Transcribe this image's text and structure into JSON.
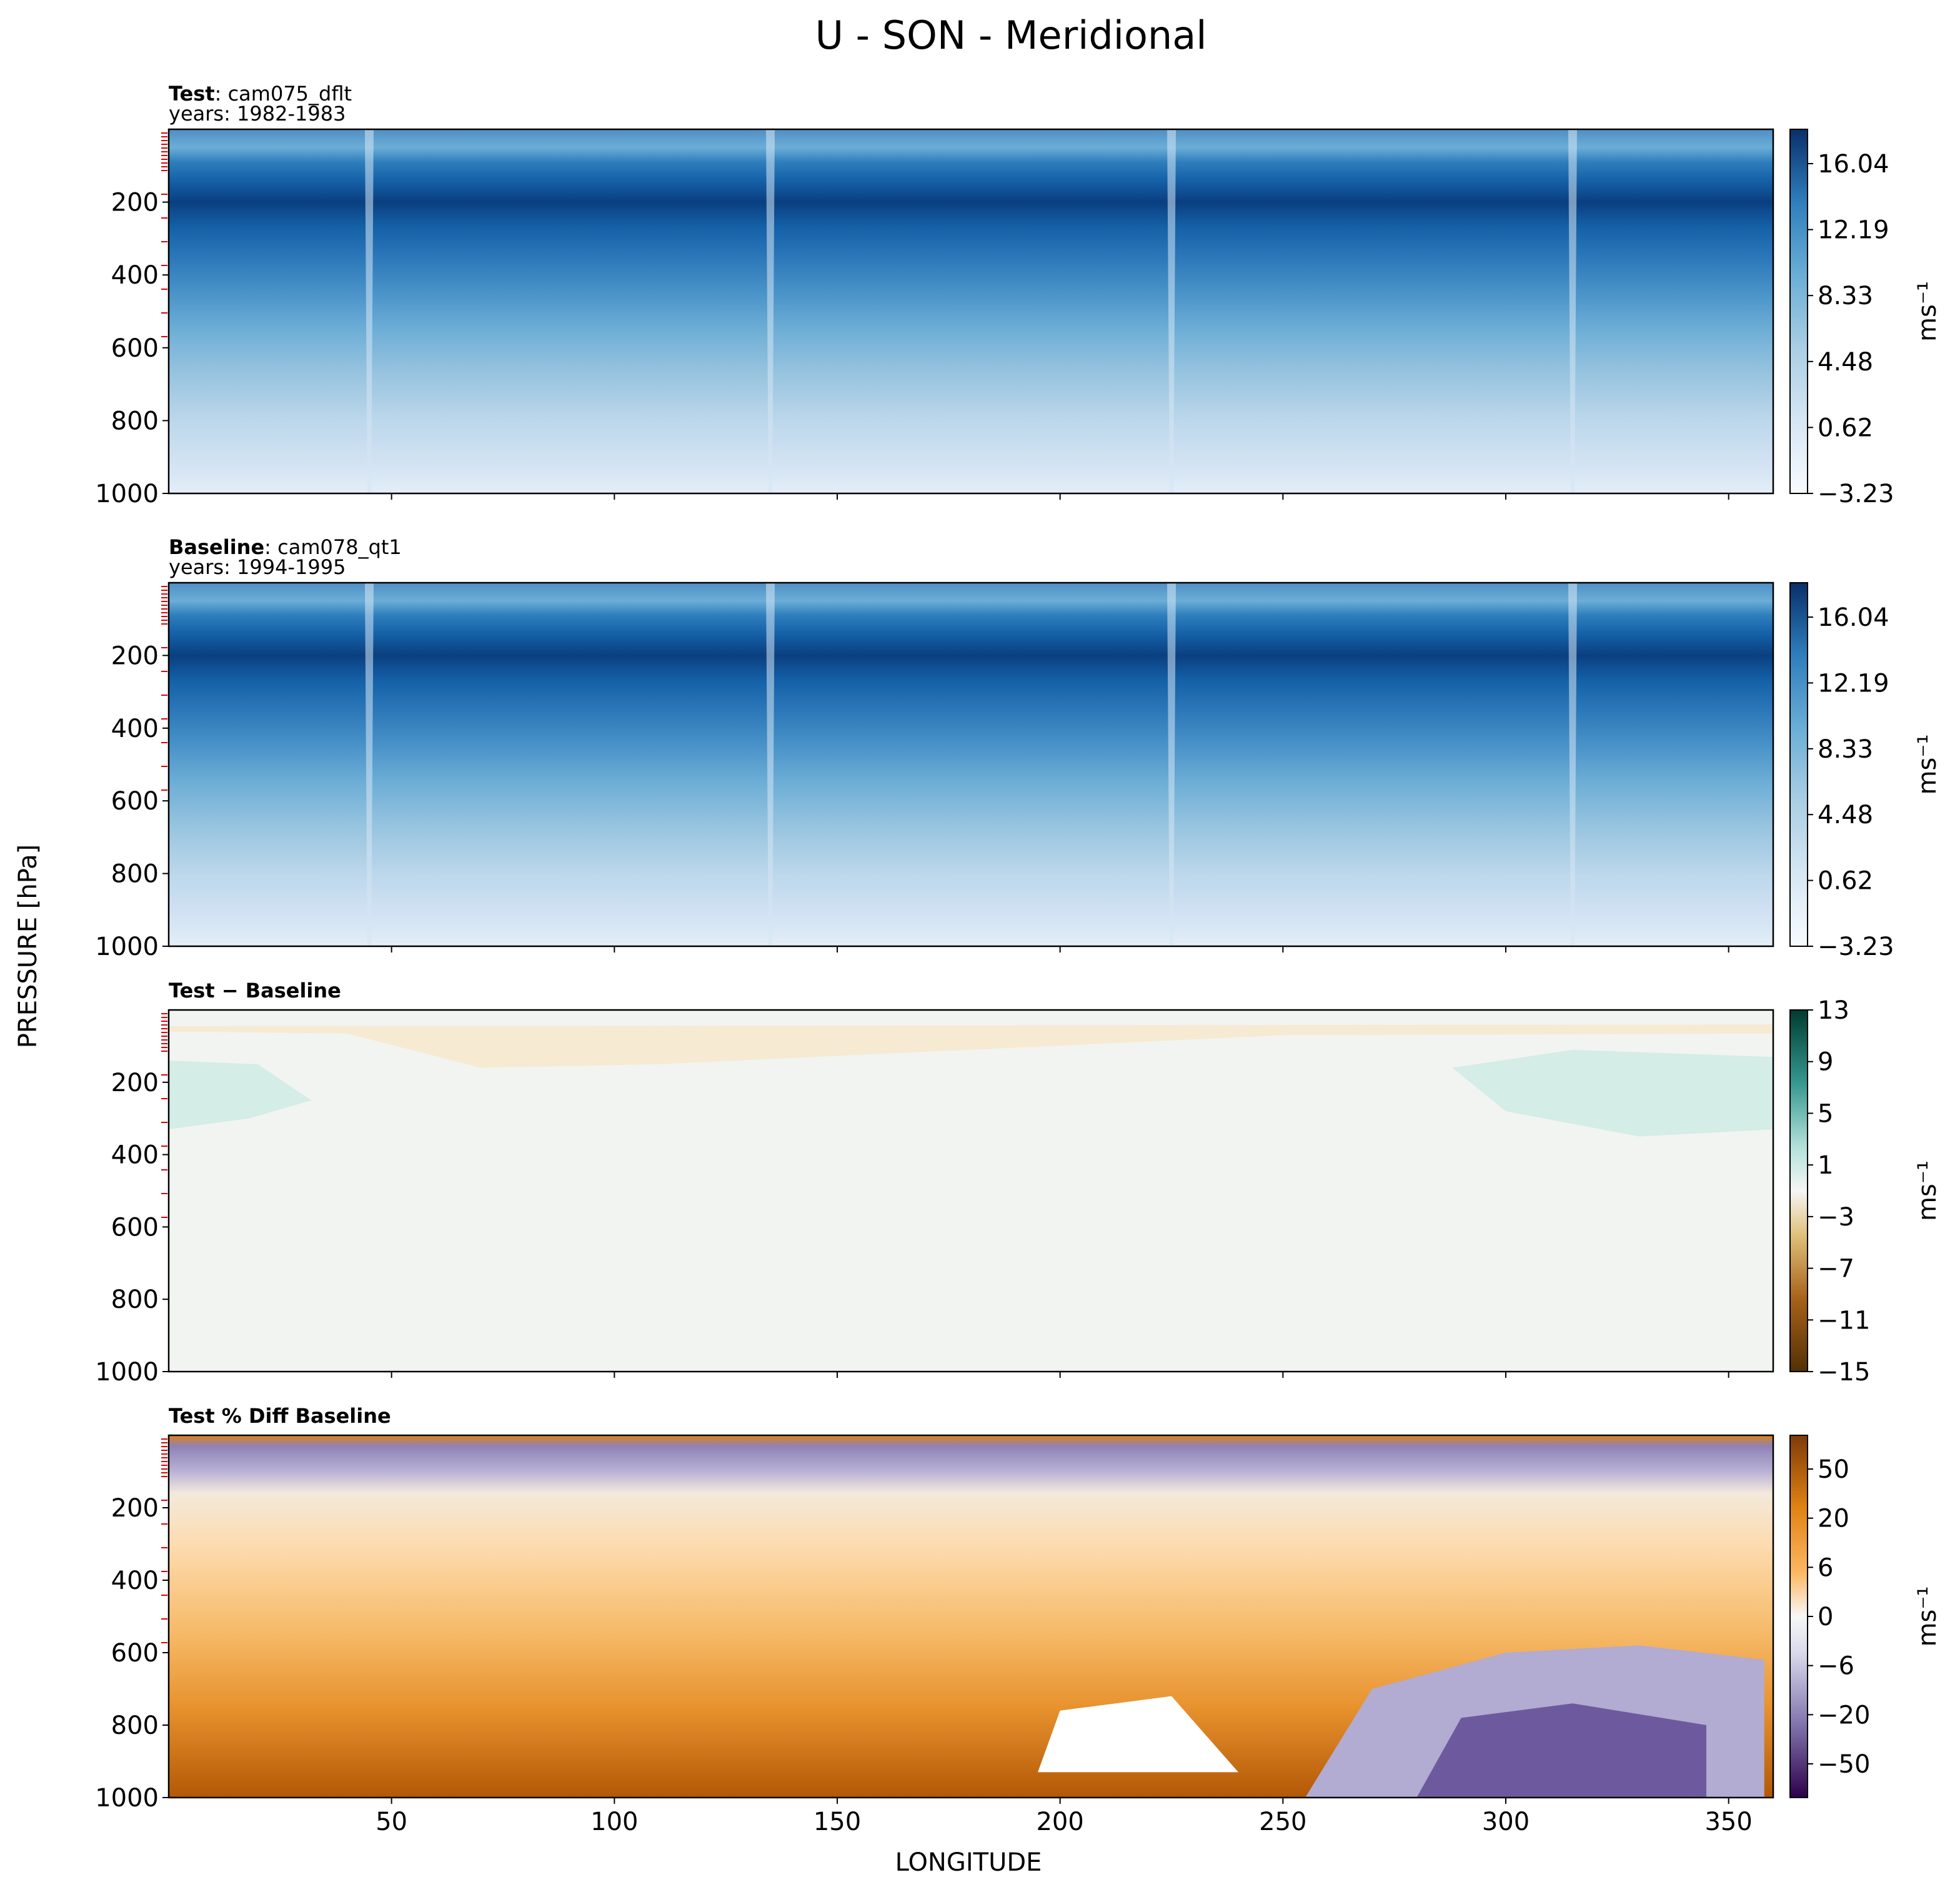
{
  "figure": {
    "title": "U - SON - Meridional",
    "xlabel": "LONGITUDE",
    "ylabel": "PRESSURE [hPa]"
  },
  "chart_data": [
    {
      "type": "heatmap",
      "panel": "test",
      "title_bold": "Test",
      "title_rest": ": cam075_dflt",
      "subtitle": "years: 1982-1983",
      "xlim": [
        0,
        360
      ],
      "ylim": [
        1000,
        0
      ],
      "xticks": [],
      "yticks": [
        200,
        400,
        600,
        800,
        1000
      ],
      "colormap": "Blues",
      "colorbar": {
        "label": "ms⁻¹",
        "ticks": [
          "16.04",
          "12.19",
          "8.33",
          "4.48",
          "0.62",
          "−3.23"
        ],
        "range": [
          -3.23,
          17.96
        ],
        "levels": 12
      },
      "jet_core": {
        "pressure_hPa": 200,
        "max_value": 17.96
      },
      "spike_longitudes": [
        45,
        135,
        225,
        315
      ]
    },
    {
      "type": "heatmap",
      "panel": "baseline",
      "title_bold": "Baseline",
      "title_rest": ": cam078_qt1",
      "subtitle": "years: 1994-1995",
      "xlim": [
        0,
        360
      ],
      "ylim": [
        1000,
        0
      ],
      "xticks": [],
      "yticks": [
        200,
        400,
        600,
        800,
        1000
      ],
      "colormap": "Blues",
      "colorbar": {
        "label": "ms⁻¹",
        "ticks": [
          "16.04",
          "12.19",
          "8.33",
          "4.48",
          "0.62",
          "−3.23"
        ],
        "range": [
          -3.23,
          17.96
        ],
        "levels": 12
      },
      "jet_core": {
        "pressure_hPa": 200,
        "max_value": 17.96
      },
      "spike_longitudes": [
        45,
        135,
        225,
        315
      ]
    },
    {
      "type": "heatmap",
      "panel": "diff",
      "title_bold": "Test − Baseline",
      "title_rest": "",
      "subtitle": "",
      "xlim": [
        0,
        360
      ],
      "ylim": [
        1000,
        0
      ],
      "xticks": [],
      "yticks": [
        200,
        400,
        600,
        800,
        1000
      ],
      "colormap": "BrBG",
      "colorbar": {
        "label": "ms⁻¹",
        "ticks": [
          "13",
          "9",
          "5",
          "1",
          "−3",
          "−7",
          "−11",
          "−15"
        ],
        "range": [
          -15,
          13
        ],
        "levels": 14
      }
    },
    {
      "type": "heatmap",
      "panel": "pctdiff",
      "title_bold": "Test % Diff Baseline",
      "title_rest": "",
      "subtitle": "",
      "xlim": [
        0,
        360
      ],
      "ylim": [
        1000,
        0
      ],
      "xticks": [
        "50",
        "100",
        "150",
        "200",
        "250",
        "300",
        "350"
      ],
      "yticks": [
        200,
        400,
        600,
        800,
        1000
      ],
      "colormap": "PuOr",
      "colorbar": {
        "label": "ms⁻¹",
        "ticks": [
          "50",
          "20",
          "6",
          "0",
          "−6",
          "−20",
          "−50"
        ]
      }
    }
  ]
}
